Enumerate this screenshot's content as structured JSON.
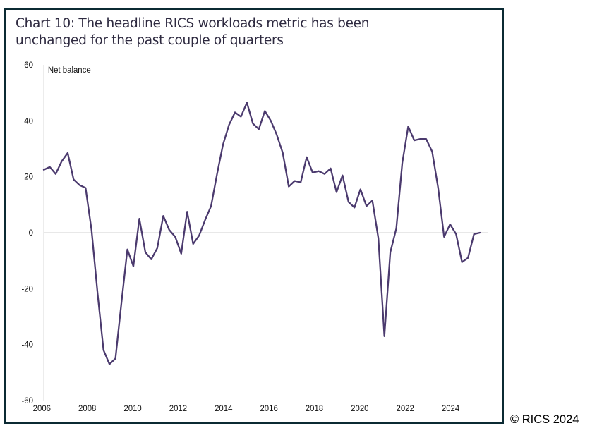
{
  "chart_data": {
    "type": "line",
    "title": "Chart 10: The headline RICS workloads metric has been unchanged for the past couple of quarters",
    "ylabel": "Net balance",
    "xlabel": "",
    "xlim": [
      2006,
      2024.6
    ],
    "ylim": [
      -60,
      60
    ],
    "yticks": [
      "60",
      "40",
      "20",
      "0",
      "-20",
      "-40",
      "-60"
    ],
    "xticks": [
      "2006",
      "2008",
      "2010",
      "2012",
      "2014",
      "2016",
      "2018",
      "2020",
      "2022",
      "2024"
    ],
    "grid": false,
    "zero_line": true,
    "legend": "none",
    "line_color": "#4b3a6e",
    "series": [
      {
        "x": [
          2006.0,
          2006.25,
          2006.5,
          2006.75,
          2007.0,
          2007.25,
          2007.5,
          2007.75,
          2008.0,
          2008.25,
          2008.5,
          2008.75,
          2009.0,
          2009.25,
          2009.5,
          2009.75,
          2010.0,
          2010.25,
          2010.5,
          2010.75,
          2011.0,
          2011.25,
          2011.5,
          2011.75,
          2012.0,
          2012.25,
          2012.5,
          2012.75,
          2013.0,
          2013.25,
          2013.5,
          2013.75,
          2014.0,
          2014.25,
          2014.5,
          2014.75,
          2015.0,
          2015.25,
          2015.5,
          2015.75,
          2016.0,
          2016.25,
          2016.5,
          2016.75,
          2017.0,
          2017.25,
          2017.5,
          2017.75,
          2018.0,
          2018.25,
          2018.5,
          2018.75,
          2019.0,
          2019.25,
          2019.5,
          2019.75,
          2020.0,
          2020.25,
          2020.5,
          2020.75,
          2021.0,
          2021.25,
          2021.5,
          2021.75,
          2022.0,
          2022.25,
          2022.5,
          2022.75,
          2023.0,
          2023.25,
          2023.5,
          2023.75,
          2024.0,
          2024.25
        ],
        "values": [
          22.5,
          23.5,
          21,
          25.5,
          28.5,
          19,
          17,
          16,
          1,
          -21.5,
          -42,
          -47,
          -45,
          -25,
          -6,
          -12,
          5,
          -7,
          -9.5,
          -5.5,
          6,
          1,
          -1.5,
          -7.5,
          7.5,
          -4,
          -1,
          4.5,
          9.5,
          21,
          31.5,
          38.5,
          43,
          41.5,
          46.5,
          39,
          37,
          43.5,
          40,
          35,
          28.5,
          16.5,
          18.5,
          18,
          27,
          21.5,
          22,
          21,
          23,
          14.5,
          20.5,
          11,
          9,
          15.5,
          9.5,
          11.5,
          -2,
          -37,
          -7,
          1.5,
          25,
          38,
          33,
          33.5,
          33.5,
          29,
          16,
          -1.5,
          3,
          -0.5,
          -10.5,
          -9,
          -0.5,
          0
        ]
      }
    ]
  },
  "copyright": "© RICS 2024"
}
